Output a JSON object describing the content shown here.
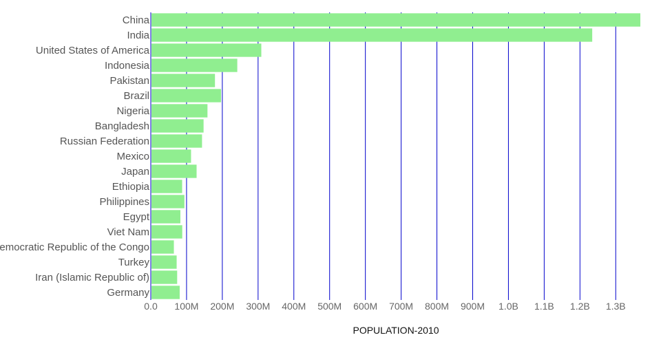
{
  "chart_data": {
    "type": "bar",
    "orientation": "horizontal",
    "categories": [
      "China",
      "India",
      "United States of America",
      "Indonesia",
      "Pakistan",
      "Brazil",
      "Nigeria",
      "Bangladesh",
      "Russian Federation",
      "Mexico",
      "Japan",
      "Ethiopia",
      "Philippines",
      "Egypt",
      "Viet Nam",
      "Democratic Republic of the Congo",
      "Turkey",
      "Iran (Islamic Republic of)",
      "Germany"
    ],
    "values": [
      1368810615,
      1234281163,
      309011469,
      241834226,
      179424643,
      196353492,
      158503203,
      147575433,
      143242599,
      112532401,
      128070000,
      87639962,
      93966784,
      82761244,
      87967651,
      64563853,
      72326914,
      73762519,
      80827002
    ],
    "xlabel": "POPULATION-2010",
    "ylabel": "",
    "xlim": [
      0,
      1368810615
    ],
    "x_ticks": [
      0,
      100000000,
      200000000,
      300000000,
      400000000,
      500000000,
      600000000,
      700000000,
      800000000,
      900000000,
      1000000000,
      1100000000,
      1200000000,
      1300000000
    ],
    "x_tick_labels": [
      "0.0",
      "100M",
      "200M",
      "300M",
      "400M",
      "500M",
      "600M",
      "700M",
      "800M",
      "900M",
      "1.0B",
      "1.1B",
      "1.2B",
      "1.3B"
    ],
    "grid": true,
    "colors": {
      "bar": "#90ee90",
      "grid": "#0000cc",
      "axis": "#0000cc"
    }
  }
}
